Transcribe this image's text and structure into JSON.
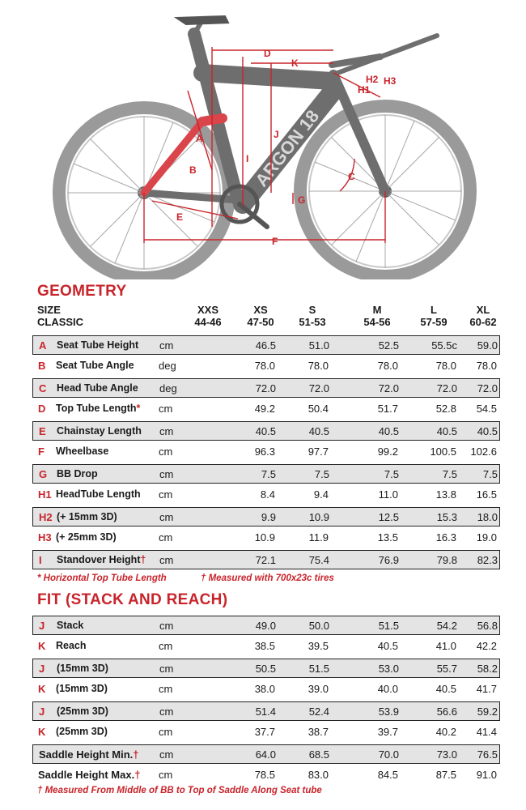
{
  "diagram": {
    "brand": "ARGON 18",
    "labels": {
      "A": "A",
      "B": "B",
      "C": "C",
      "D": "D",
      "E": "E",
      "F": "F",
      "G": "G",
      "H1": "H1",
      "H2": "H2",
      "H3": "H3",
      "I": "I",
      "J": "J",
      "K": "K"
    }
  },
  "geometry": {
    "title": "GEOMETRY",
    "size_label": "SIZE",
    "classic_label": "CLASSIC",
    "sizes": [
      {
        "name": "XXS",
        "range": "44-46"
      },
      {
        "name": "XS",
        "range": "47-50"
      },
      {
        "name": "S",
        "range": "51-53"
      },
      {
        "name": "M",
        "range": "54-56"
      },
      {
        "name": "L",
        "range": "57-59"
      },
      {
        "name": "XL",
        "range": "60-62"
      }
    ],
    "rows": [
      {
        "letter": "A",
        "name": "Seat Tube Height",
        "mark": "",
        "unit": "cm",
        "values": [
          "",
          "46.5",
          "51.0",
          "52.5",
          "55.5c",
          "59.0"
        ]
      },
      {
        "letter": "B",
        "name": "Seat Tube Angle",
        "mark": "",
        "unit": "deg",
        "values": [
          "",
          "78.0",
          "78.0",
          "78.0",
          "78.0",
          "78.0"
        ]
      },
      {
        "letter": "C",
        "name": "Head Tube Angle",
        "mark": "",
        "unit": "deg",
        "values": [
          "",
          "72.0",
          "72.0",
          "72.0",
          "72.0",
          "72.0"
        ]
      },
      {
        "letter": "D",
        "name": "Top Tube Length",
        "mark": "*",
        "unit": "cm",
        "values": [
          "",
          "49.2",
          "50.4",
          "51.7",
          "52.8",
          "54.5"
        ]
      },
      {
        "letter": "E",
        "name": "Chainstay Length",
        "mark": "",
        "unit": "cm",
        "values": [
          "",
          "40.5",
          "40.5",
          "40.5",
          "40.5",
          "40.5"
        ]
      },
      {
        "letter": "F",
        "name": "Wheelbase",
        "mark": "",
        "unit": "cm",
        "values": [
          "",
          "96.3",
          "97.7",
          "99.2",
          "100.5",
          "102.6"
        ]
      },
      {
        "letter": "G",
        "name": "BB Drop",
        "mark": "",
        "unit": "cm",
        "values": [
          "",
          "7.5",
          "7.5",
          "7.5",
          "7.5",
          "7.5"
        ]
      },
      {
        "letter": "H1",
        "name": "HeadTube Length",
        "mark": "",
        "unit": "cm",
        "values": [
          "",
          "8.4",
          "9.4",
          "11.0",
          "13.8",
          "16.5"
        ]
      },
      {
        "letter": "H2",
        "name": "(+ 15mm 3D)",
        "mark": "",
        "unit": "cm",
        "values": [
          "",
          "9.9",
          "10.9",
          "12.5",
          "15.3",
          "18.0"
        ]
      },
      {
        "letter": "H3",
        "name": "(+ 25mm 3D)",
        "mark": "",
        "unit": "cm",
        "values": [
          "",
          "10.9",
          "11.9",
          "13.5",
          "16.3",
          "19.0"
        ]
      },
      {
        "letter": "I",
        "name": "Standover Height",
        "mark": "†",
        "unit": "cm",
        "values": [
          "",
          "72.1",
          "75.4",
          "76.9",
          "79.8",
          "82.3"
        ]
      }
    ],
    "note_star": "* Horizontal Top Tube Length",
    "note_dagger": "† Measured with 700x23c tires"
  },
  "fit": {
    "title": "FIT (STACK AND REACH)",
    "rows": [
      {
        "letter": "J",
        "name": "Stack",
        "mark": "",
        "unit": "cm",
        "values": [
          "",
          "49.0",
          "50.0",
          "51.5",
          "54.2",
          "56.8"
        ]
      },
      {
        "letter": "K",
        "name": "Reach",
        "mark": "",
        "unit": "cm",
        "values": [
          "",
          "38.5",
          "39.5",
          "40.5",
          "41.0",
          "42.2"
        ]
      },
      {
        "letter": "J",
        "name": "(15mm 3D)",
        "mark": "",
        "unit": "cm",
        "values": [
          "",
          "50.5",
          "51.5",
          "53.0",
          "55.7",
          "58.2"
        ]
      },
      {
        "letter": "K",
        "name": "(15mm 3D)",
        "mark": "",
        "unit": "cm",
        "values": [
          "",
          "38.0",
          "39.0",
          "40.0",
          "40.5",
          "41.7"
        ]
      },
      {
        "letter": "J",
        "name": "(25mm 3D)",
        "mark": "",
        "unit": "cm",
        "values": [
          "",
          "51.4",
          "52.4",
          "53.9",
          "56.6",
          "59.2"
        ]
      },
      {
        "letter": "K",
        "name": "(25mm 3D)",
        "mark": "",
        "unit": "cm",
        "values": [
          "",
          "37.7",
          "38.7",
          "39.7",
          "40.2",
          "41.4"
        ]
      },
      {
        "letter": "",
        "name": "Saddle Height Min.",
        "mark": "†",
        "unit": "cm",
        "values": [
          "",
          "64.0",
          "68.5",
          "70.0",
          "73.0",
          "76.5"
        ]
      },
      {
        "letter": "",
        "name": "Saddle Height Max.",
        "mark": "†",
        "unit": "cm",
        "values": [
          "",
          "78.5",
          "83.0",
          "84.5",
          "87.5",
          "91.0"
        ]
      }
    ],
    "note": "† Measured From Middle of BB to Top of Saddle Along Seat tube"
  }
}
